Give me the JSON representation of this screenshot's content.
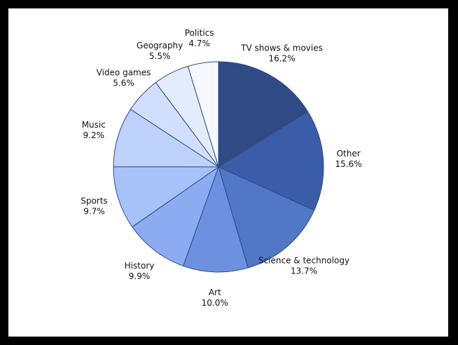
{
  "chart_data": {
    "type": "pie",
    "categories": [
      "TV shows & movies",
      "Other",
      "Science & technology",
      "Art",
      "History",
      "Sports",
      "Music",
      "Video games",
      "Geography",
      "Politics"
    ],
    "values": [
      16.2,
      15.6,
      13.7,
      10.0,
      9.9,
      9.7,
      9.2,
      5.6,
      5.5,
      4.7
    ],
    "value_labels": [
      "16.2%",
      "15.6%",
      "13.7%",
      "10.0%",
      "9.9%",
      "9.7%",
      "9.2%",
      "5.6%",
      "5.5%",
      "4.7%"
    ],
    "colors": [
      "#2f4a84",
      "#3b5ca8",
      "#5177c6",
      "#6d91de",
      "#8cabf0",
      "#a7c2f8",
      "#bdd1fb",
      "#d1dffd",
      "#e3ecfd",
      "#f5f8ff"
    ]
  }
}
